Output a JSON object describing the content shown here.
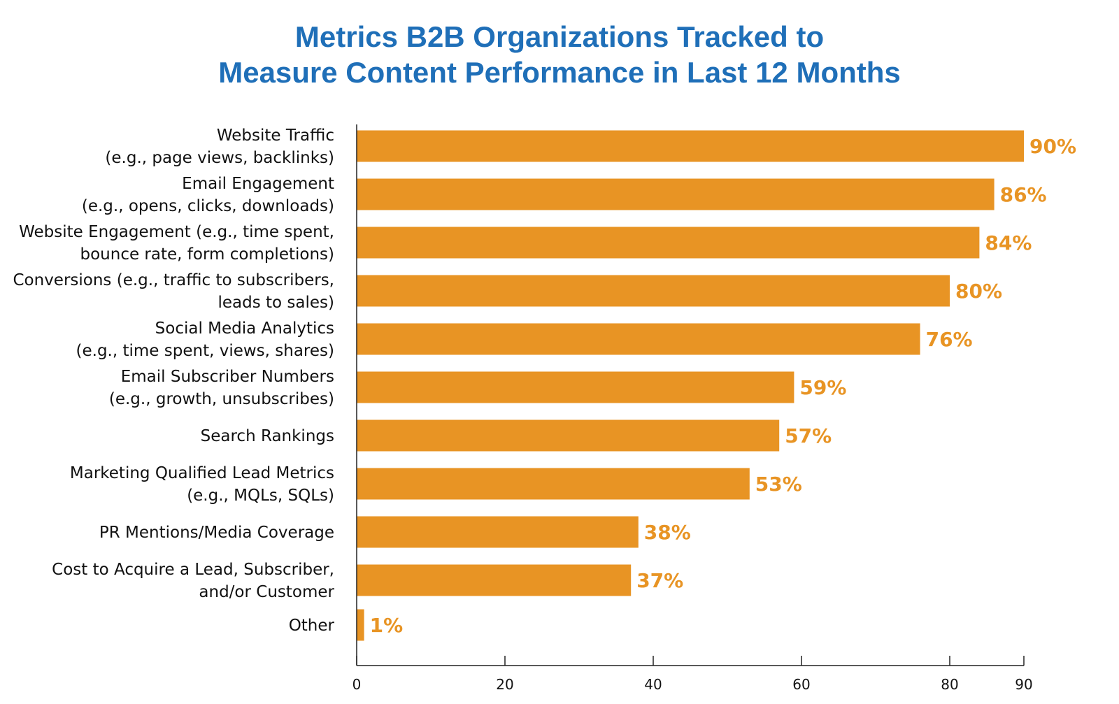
{
  "colors": {
    "title": "#1f6fb8",
    "bar": "#e89424",
    "value_label": "#e89424",
    "text": "#111111",
    "axis": "#222222"
  },
  "chart_data": {
    "type": "bar",
    "orientation": "horizontal",
    "title_lines": [
      "Metrics B2B Organizations Tracked to",
      "Measure Content Performance in Last 12 Months"
    ],
    "categories": [
      [
        "Website Traffic",
        "(e.g., page views, backlinks)"
      ],
      [
        "Email Engagement",
        "(e.g., opens, clicks, downloads)"
      ],
      [
        "Website Engagement (e.g., time spent,",
        "bounce rate, form completions)"
      ],
      [
        "Conversions (e.g., traffic to subscribers,",
        "leads to sales)"
      ],
      [
        "Social Media Analytics",
        "(e.g., time spent, views, shares)"
      ],
      [
        "Email Subscriber Numbers",
        "(e.g., growth, unsubscribes)"
      ],
      [
        "Search Rankings"
      ],
      [
        "Marketing Qualified Lead Metrics",
        "(e.g., MQLs, SQLs)"
      ],
      [
        "PR Mentions/Media Coverage"
      ],
      [
        "Cost to Acquire a Lead, Subscriber,",
        "and/or Customer"
      ],
      [
        "Other"
      ]
    ],
    "values": [
      90,
      86,
      84,
      80,
      76,
      59,
      57,
      53,
      38,
      37,
      1
    ],
    "value_labels": [
      "90%",
      "86%",
      "84%",
      "80%",
      "76%",
      "59%",
      "57%",
      "53%",
      "38%",
      "37%",
      "1%"
    ],
    "xlim": [
      0,
      90
    ],
    "xticks": [
      0,
      20,
      40,
      60,
      80,
      90
    ],
    "xtick_labels": [
      "0",
      "20",
      "40",
      "60",
      "80",
      "90"
    ],
    "grid": false,
    "legend": "none"
  }
}
